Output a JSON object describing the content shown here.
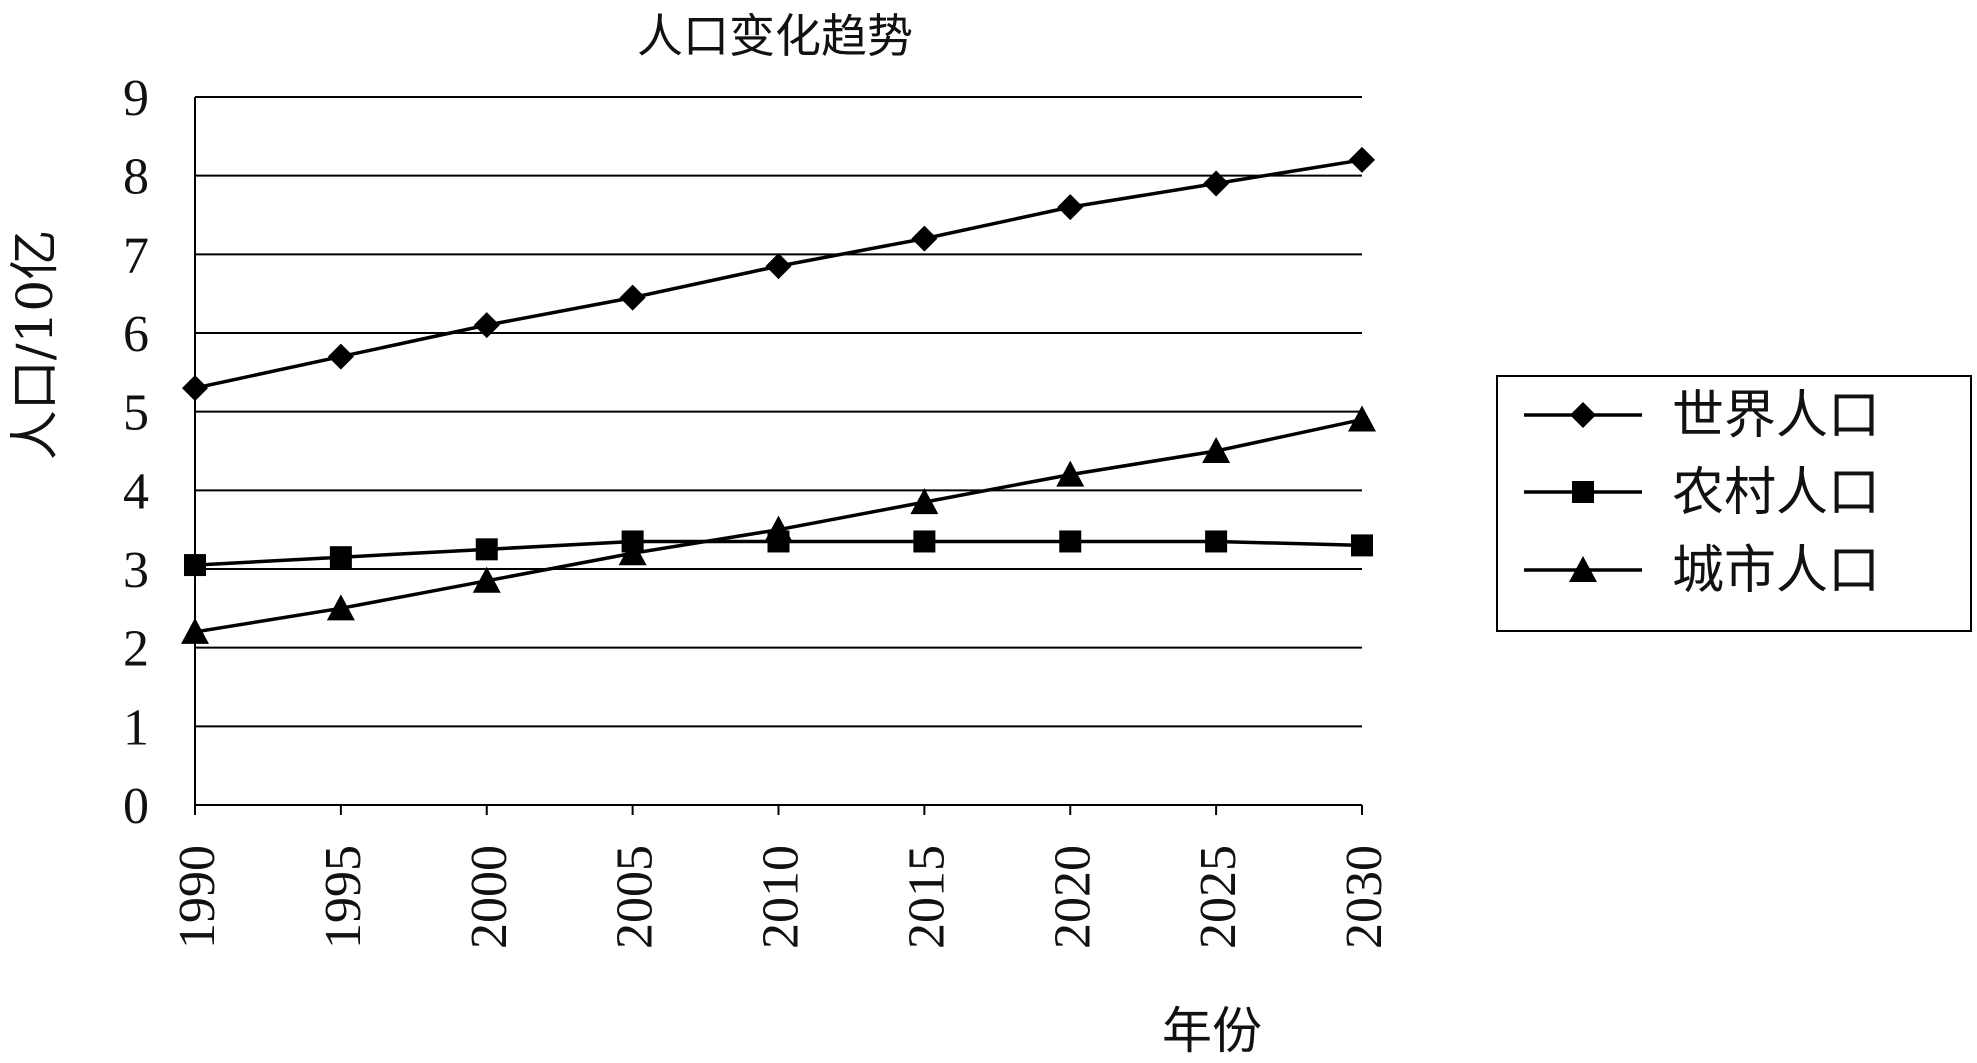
{
  "chart_data": {
    "type": "line",
    "title": "人口变化趋势",
    "xlabel": "年份",
    "ylabel": "人口/10亿",
    "x": [
      1990,
      1995,
      2000,
      2005,
      2010,
      2015,
      2020,
      2025,
      2030
    ],
    "x_tick_labels": [
      "1990",
      "1995",
      "2000",
      "2005",
      "2010",
      "2015",
      "2020",
      "2025",
      "2030"
    ],
    "ylim": [
      0,
      9
    ],
    "y_ticks": [
      0,
      1,
      2,
      3,
      4,
      5,
      6,
      7,
      8,
      9
    ],
    "grid": true,
    "legend_position": "right",
    "series": [
      {
        "name": "世界人口",
        "marker": "diamond",
        "values": [
          5.3,
          5.7,
          6.1,
          6.45,
          6.85,
          7.2,
          7.6,
          7.9,
          8.2
        ]
      },
      {
        "name": "农村人口",
        "marker": "square",
        "values": [
          3.05,
          3.15,
          3.25,
          3.35,
          3.35,
          3.35,
          3.35,
          3.35,
          3.3
        ]
      },
      {
        "name": "城市人口",
        "marker": "triangle",
        "values": [
          2.2,
          2.5,
          2.85,
          3.2,
          3.5,
          3.85,
          4.2,
          4.5,
          4.9
        ]
      }
    ],
    "colors": {
      "line": "#000000",
      "grid": "#000000"
    }
  }
}
